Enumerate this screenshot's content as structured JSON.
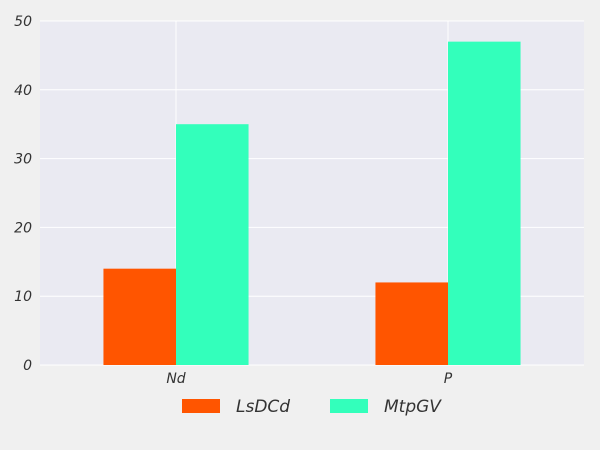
{
  "chart_data": {
    "type": "bar",
    "categories": [
      "Nd",
      "P"
    ],
    "series": [
      {
        "name": "LsDCd",
        "values": [
          14,
          12
        ],
        "color": "#ff5500"
      },
      {
        "name": "MtpGV",
        "values": [
          35,
          47
        ],
        "color": "#33ffbb"
      }
    ],
    "ylim": [
      0,
      50
    ],
    "yticks": [
      0,
      10,
      20,
      30,
      40,
      50
    ],
    "grid": true,
    "legend_position": "bottom-center",
    "plot_background": "#eaeaf2",
    "title": "",
    "xlabel": "",
    "ylabel": ""
  }
}
